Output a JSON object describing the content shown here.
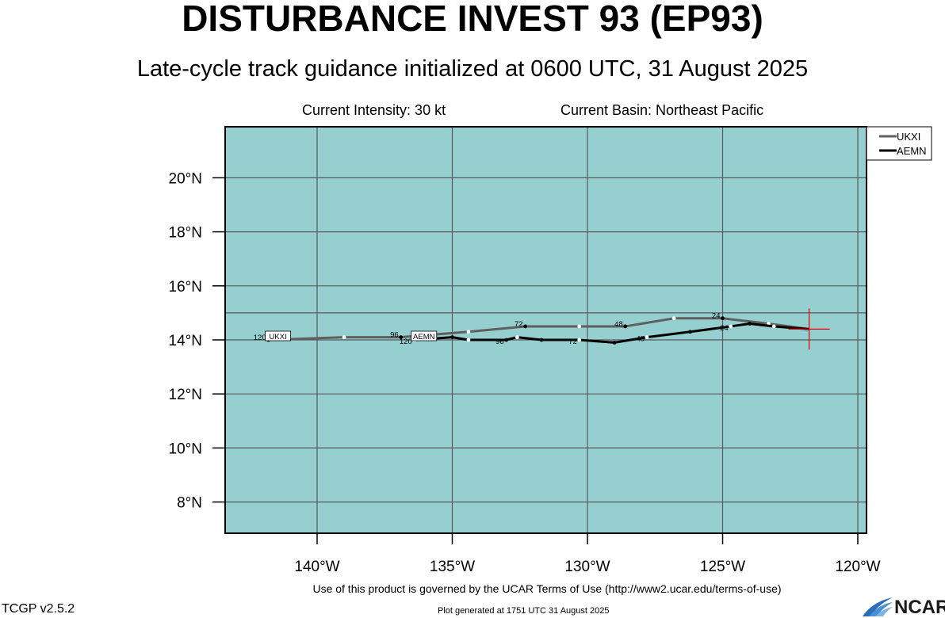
{
  "header": {
    "title": "DISTURBANCE INVEST 93 (EP93)",
    "subtitle": "Late-cycle track guidance initialized at 0600 UTC, 31 August 2025",
    "intensity": "Current Intensity: 30 kt",
    "basin": "Current Basin: Northeast Pacific"
  },
  "footer": {
    "terms": "Use of this product is governed by the UCAR Terms of Use (http://www2.ucar.edu/terms-of-use)",
    "version": "TCGP v2.5.2",
    "generated": "Plot generated at 1751 UTC   31 August 2025",
    "logo": "NCAR"
  },
  "colors": {
    "ocean": "#96cfcf",
    "grid": "#5a5a5a",
    "ukxi": "#5f5f5f",
    "aemn": "#000000",
    "current_position": "#e00000"
  },
  "chart_data": {
    "type": "line",
    "xlabel": "",
    "ylabel": "",
    "xlim": [
      -143.4,
      -119.6
    ],
    "ylim": [
      7.2,
      22.0
    ],
    "x_ticks": [
      -140,
      -135,
      -130,
      -125,
      -120
    ],
    "x_tick_labels": [
      "140°W",
      "135°W",
      "130°W",
      "125°W",
      "120°W"
    ],
    "y_ticks": [
      8,
      10,
      12,
      14,
      16,
      18,
      20
    ],
    "y_tick_labels": [
      "8°N",
      "10°N",
      "12°N",
      "14°N",
      "16°N",
      "18°N",
      "20°N"
    ],
    "grid": true,
    "legend_position": "top-right outside",
    "current_position": {
      "lon": -121.8,
      "lat": 14.4
    },
    "series": [
      {
        "name": "UKXI",
        "color": "#5f5f5f",
        "track": [
          [
            -121.8,
            14.4
          ],
          [
            -123.3,
            14.6
          ],
          [
            -125.0,
            14.8
          ],
          [
            -126.8,
            14.8
          ],
          [
            -128.6,
            14.5
          ],
          [
            -130.3,
            14.5
          ],
          [
            -132.3,
            14.5
          ],
          [
            -134.4,
            14.3
          ],
          [
            -136.9,
            14.1
          ],
          [
            -139.0,
            14.1
          ],
          [
            -141.8,
            14.0
          ]
        ],
        "hour_labels": [
          {
            "text": "24",
            "lon": -125.0,
            "lat": 14.8
          },
          {
            "text": "48",
            "lon": -128.6,
            "lat": 14.5
          },
          {
            "text": "72",
            "lon": -132.3,
            "lat": 14.5
          },
          {
            "text": "96",
            "lon": -136.9,
            "lat": 14.1
          },
          {
            "text": "120",
            "lon": -141.8,
            "lat": 14.0
          }
        ]
      },
      {
        "name": "AEMN",
        "color": "#000000",
        "track": [
          [
            -121.8,
            14.4
          ],
          [
            -123.1,
            14.5
          ],
          [
            -124.0,
            14.6
          ],
          [
            -124.7,
            14.5
          ],
          [
            -126.2,
            14.3
          ],
          [
            -127.8,
            14.1
          ],
          [
            -129.0,
            13.9
          ],
          [
            -130.3,
            14.0
          ],
          [
            -131.7,
            14.0
          ],
          [
            -132.6,
            14.1
          ],
          [
            -133.0,
            14.0
          ],
          [
            -134.4,
            14.0
          ],
          [
            -135.0,
            14.1
          ],
          [
            -136.4,
            14.0
          ]
        ],
        "hour_labels": [
          {
            "text": "24",
            "lon": -124.7,
            "lat": 14.5
          },
          {
            "text": "48",
            "lon": -127.8,
            "lat": 14.1
          },
          {
            "text": "72",
            "lon": -130.3,
            "lat": 14.0
          },
          {
            "text": "96",
            "lon": -133.0,
            "lat": 14.0
          },
          {
            "text": "120",
            "lon": -136.4,
            "lat": 14.0
          }
        ]
      }
    ]
  }
}
